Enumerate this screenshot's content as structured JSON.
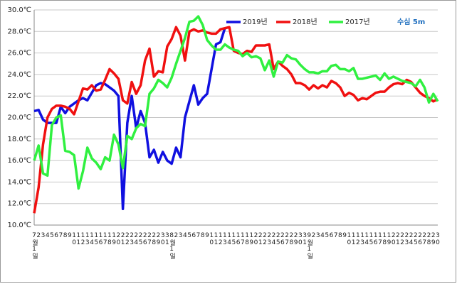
{
  "chart_data": {
    "type": "line",
    "annotation": "수심 5m",
    "categories": [
      "7월1일",
      "2",
      "3",
      "4",
      "5",
      "6",
      "7",
      "8",
      "9",
      "10",
      "11",
      "12",
      "13",
      "14",
      "15",
      "16",
      "17",
      "18",
      "19",
      "20",
      "21",
      "22",
      "23",
      "24",
      "25",
      "26",
      "27",
      "28",
      "29",
      "30",
      "31",
      "8월1일",
      "2",
      "3",
      "4",
      "5",
      "6",
      "7",
      "8",
      "9",
      "10",
      "11",
      "12",
      "13",
      "14",
      "15",
      "16",
      "17",
      "18",
      "19",
      "20",
      "21",
      "22",
      "23",
      "24",
      "25",
      "26",
      "27",
      "28",
      "29",
      "30",
      "31",
      "9월1일",
      "2",
      "3",
      "4",
      "5",
      "6",
      "7",
      "8",
      "9",
      "10",
      "11",
      "12",
      "13",
      "14",
      "15",
      "16",
      "17",
      "18",
      "19",
      "20",
      "21",
      "22",
      "23",
      "24",
      "25",
      "26",
      "27",
      "28",
      "29",
      "30"
    ],
    "series": [
      {
        "name": "2019년",
        "color": "#1010e0",
        "values": [
          20.6,
          20.7,
          19.8,
          19.5,
          19.5,
          19.5,
          21,
          20.4,
          21,
          21.3,
          21.6,
          21.8,
          21.6,
          22.3,
          23,
          23.2,
          23.1,
          22.8,
          22.5,
          22,
          11.5,
          19.5,
          22,
          19,
          20.6,
          19.5,
          16.3,
          17,
          15.8,
          16.8,
          16,
          15.7,
          17.2,
          16.3,
          20,
          21.5,
          23,
          21.2,
          21.8,
          22.2,
          24.5,
          26.8,
          27,
          28.3,
          null,
          null,
          null,
          null,
          null,
          null,
          null,
          null,
          null,
          null,
          null,
          null,
          null,
          null,
          null,
          null,
          null,
          null,
          null,
          null,
          null,
          null,
          null,
          null,
          null,
          null,
          null,
          null,
          null,
          null,
          null,
          null,
          null,
          null,
          null,
          null,
          null,
          null,
          null,
          null,
          null,
          null,
          null,
          null,
          null,
          null,
          null,
          null
        ]
      },
      {
        "name": "2018년",
        "color": "#f01010",
        "values": [
          11.1,
          13.5,
          17.5,
          20,
          20.8,
          21.1,
          21.1,
          21,
          20.8,
          20.3,
          21.5,
          22.7,
          22.6,
          23,
          22.5,
          22.6,
          23.5,
          24.5,
          24.1,
          23.6,
          21.6,
          21.3,
          23.3,
          22.2,
          23,
          25.3,
          26.4,
          23.8,
          24.3,
          24.2,
          26.6,
          27.3,
          28.4,
          27.6,
          25.3,
          28,
          28.2,
          28,
          28.1,
          27.9,
          27.8,
          27.8,
          28.2,
          28.3,
          28.4,
          26.2,
          26,
          25.9,
          26.2,
          26.1,
          26.7,
          26.7,
          26.7,
          26.8,
          24.5,
          25.2,
          24.8,
          24.5,
          24,
          23.2,
          23.2,
          23,
          22.6,
          23,
          22.7,
          23,
          22.8,
          23.4,
          23.2,
          22.8,
          22,
          22.3,
          22.1,
          21.6,
          21.8,
          21.7,
          22,
          22.3,
          22.4,
          22.4,
          22.8,
          23.1,
          23.2,
          23.1,
          23.5,
          23.3,
          22.8,
          22.3,
          22,
          21.8,
          21.5,
          21.7
        ]
      },
      {
        "name": "2017년",
        "color": "#30f040",
        "values": [
          16,
          17.4,
          14.8,
          14.6,
          19.3,
          20,
          20.2,
          16.9,
          16.8,
          16.5,
          13.4,
          15,
          17.2,
          16.2,
          15.8,
          15.2,
          16.3,
          16,
          18.4,
          17.5,
          15.3,
          18.3,
          18,
          19,
          19.4,
          19.2,
          22.2,
          22.7,
          23.5,
          23.2,
          22.8,
          23.7,
          25,
          26.2,
          27.4,
          28.9,
          29,
          29.4,
          28.6,
          27.2,
          26.7,
          26.3,
          26.3,
          26.8,
          26.5,
          26.3,
          26.2,
          25.7,
          26,
          25.6,
          25.7,
          25.5,
          24.4,
          25.3,
          23.8,
          25.2,
          25.1,
          25.8,
          25.5,
          25.4,
          24.9,
          24.5,
          24.2,
          24.2,
          24.1,
          24.3,
          24.3,
          24.8,
          24.9,
          24.5,
          24.5,
          24.3,
          24.6,
          23.6,
          23.6,
          23.7,
          23.8,
          23.9,
          23.5,
          24.1,
          23.6,
          23.8,
          23.6,
          23.4,
          23.3,
          23.2,
          22.9,
          23.5,
          22.8,
          21.4,
          22.2,
          21.5
        ]
      }
    ],
    "ylim": [
      10,
      30
    ],
    "yticks": [
      {
        "value": 10,
        "label": "10.0℃"
      },
      {
        "value": 12,
        "label": "12.0℃"
      },
      {
        "value": 14,
        "label": "14.0℃"
      },
      {
        "value": 16,
        "label": "16.0℃"
      },
      {
        "value": 18,
        "label": "18.0℃"
      },
      {
        "value": 20,
        "label": "20.0℃"
      },
      {
        "value": 22,
        "label": "22.0℃"
      },
      {
        "value": 24,
        "label": "24.0℃"
      },
      {
        "value": 26,
        "label": "26.0℃"
      },
      {
        "value": 28,
        "label": "28.0℃"
      },
      {
        "value": 30,
        "label": "30.0℃"
      }
    ],
    "grid": true
  }
}
